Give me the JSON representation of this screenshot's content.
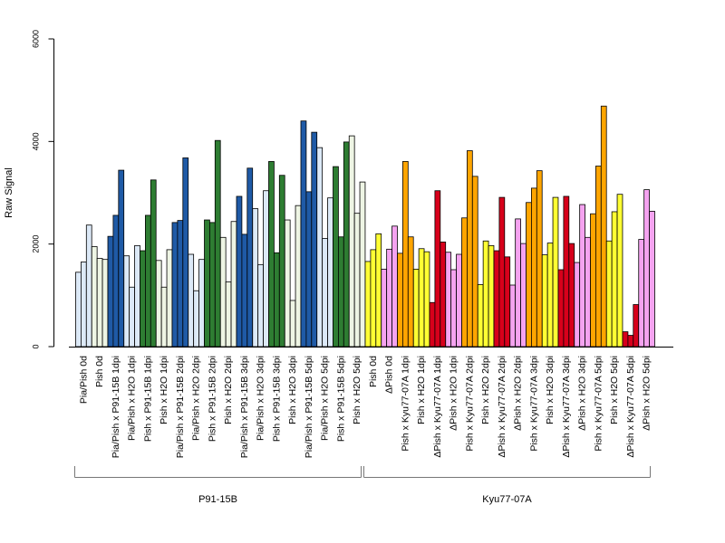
{
  "chart_data": {
    "type": "bar",
    "title": "",
    "xlabel": "",
    "ylabel": "Raw Signal",
    "ylim": [
      0,
      6000
    ],
    "yticks": [
      0,
      2000,
      4000,
      6000
    ],
    "grid": false,
    "groups": [
      {
        "label": "P91-15B",
        "first": 0,
        "last": 17
      },
      {
        "label": "Kyu77-07A",
        "first": 18,
        "last": 35
      }
    ],
    "categories": [
      "Pia/Pish 0d",
      "Pish 0d",
      "Pia/Pish x P91-15B 1dpi",
      "Pia/Pish x H2O 1dpi",
      "Pish x P91-15B 1dpi",
      "Pish x H2O 1dpi",
      "Pia/Pish x P91-15B 2dpi",
      "Pia/Pish x H2O 2dpi",
      "Pish x P91-15B 2dpi",
      "Pish x H2O 2dpi",
      "Pia/Pish x P91-15B 3dpi",
      "Pia/Pish x H2O 3dpi",
      "Pish x P91-15B 3dpi",
      "Pish x H2O 3dpi",
      "Pia/Pish x P91-15B 5dpi",
      "Pia/Pish x H2O 5dpi",
      "Pish x P91-15B 5dpi",
      "Pish x H2O 5dpi",
      "Pish 0d",
      "ΔPish 0d",
      "Pish x Kyu77-07A 1dpi",
      "Pish x H2O 1dpi",
      "ΔPish x Kyu77-07A 1dpi",
      "ΔPish x H2O 1dpi",
      "Pish x Kyu77-07A 2dpi",
      "Pish x H2O 2dpi",
      "ΔPish x Kyu77-07A 2dpi",
      "ΔPish x H2O 2dpi",
      "Pish x Kyu77-07A 3dpi",
      "Pish x H2O 3dpi",
      "ΔPish x Kyu77-07A 3dpi",
      "ΔPish x H2O 3dpi",
      "Pish x Kyu77-07A 5dpi",
      "Pish x H2O 5dpi",
      "ΔPish x Kyu77-07A 5dpi",
      "ΔPish x H2O 5dpi"
    ],
    "colors": [
      "#dce9f7",
      "#eef5e4",
      "#1f5aa6",
      "#dce9f7",
      "#2e7d32",
      "#eef5e4",
      "#1f5aa6",
      "#dce9f7",
      "#2e7d32",
      "#eef5e4",
      "#1f5aa6",
      "#dce9f7",
      "#2e7d32",
      "#eef5e4",
      "#1f5aa6",
      "#dce9f7",
      "#2e7d32",
      "#eef5e4",
      "#ffff33",
      "#f5a3f0",
      "#ffa500",
      "#ffff33",
      "#d7001b",
      "#f5a3f0",
      "#ffa500",
      "#ffff33",
      "#d7001b",
      "#f5a3f0",
      "#ffa500",
      "#ffff33",
      "#d7001b",
      "#f5a3f0",
      "#ffa500",
      "#ffff33",
      "#d7001b",
      "#f5a3f0"
    ],
    "replicate_values": [
      [
        1450,
        1650,
        2370
      ],
      [
        1950,
        1720,
        1700
      ],
      [
        2150,
        2560,
        3440
      ],
      [
        1770,
        1160,
        1970
      ],
      [
        1870,
        2560,
        3250
      ],
      [
        1680,
        1160,
        1890
      ],
      [
        2420,
        2460,
        3680
      ],
      [
        1800,
        1090,
        1700
      ],
      [
        2470,
        2420,
        4020
      ],
      [
        2130,
        1260,
        2440
      ],
      [
        2930,
        2190,
        3480
      ],
      [
        2690,
        1600,
        3040
      ],
      [
        3610,
        1830,
        3340
      ],
      [
        2470,
        900,
        2750
      ],
      [
        4400,
        3020,
        4180
      ],
      [
        3880,
        2110,
        2900
      ],
      [
        3510,
        2140,
        3990
      ],
      [
        4110,
        2600,
        3210
      ],
      [
        1660,
        1890,
        2200
      ],
      [
        1510,
        1900,
        2350
      ],
      [
        1820,
        3610,
        2140
      ],
      [
        1510,
        1910,
        1850
      ],
      [
        860,
        3040,
        2040
      ],
      [
        1840,
        1500,
        1800
      ],
      [
        2510,
        3820,
        3320
      ],
      [
        1210,
        2060,
        1970
      ],
      [
        1870,
        2910,
        1750
      ],
      [
        1200,
        2490,
        2010
      ],
      [
        2810,
        3090,
        3430
      ],
      [
        1790,
        2020,
        2910
      ],
      [
        1500,
        2930,
        2010
      ],
      [
        1640,
        2770,
        2130
      ],
      [
        2590,
        3520,
        4690
      ],
      [
        2060,
        2630,
        2970
      ],
      [
        290,
        220,
        820
      ],
      [
        2090,
        3060,
        2640
      ]
    ]
  }
}
